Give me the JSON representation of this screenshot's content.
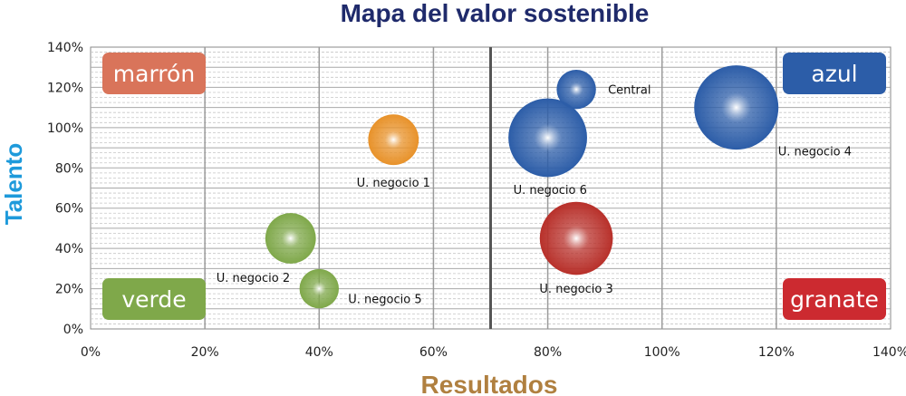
{
  "chart_data": {
    "type": "bubble",
    "title": "Mapa del valor sostenible",
    "xlabel": "Resultados",
    "ylabel": "Talento",
    "xlim": [
      0,
      140
    ],
    "ylim": [
      0,
      140
    ],
    "x_ticks": [
      "0%",
      "20%",
      "40%",
      "60%",
      "80%",
      "100%",
      "120%",
      "140%"
    ],
    "y_ticks": [
      "0%",
      "20%",
      "40%",
      "60%",
      "80%",
      "100%",
      "120%",
      "140%"
    ],
    "x_divider": 70,
    "grid": true,
    "bubbles": [
      {
        "label": "U. negocio 1",
        "x": 53,
        "y": 94,
        "size": 9,
        "color": "#E8922A"
      },
      {
        "label": "U. negocio 2",
        "x": 35,
        "y": 45,
        "size": 9,
        "color": "#7FA84A"
      },
      {
        "label": "U. negocio 3",
        "x": 85,
        "y": 45,
        "size": 13,
        "color": "#B8302A"
      },
      {
        "label": "U. negocio 4",
        "x": 113,
        "y": 110,
        "size": 15,
        "color": "#2C5DA8"
      },
      {
        "label": "U. negocio 5",
        "x": 40,
        "y": 20,
        "size": 7,
        "color": "#7FA84A"
      },
      {
        "label": "U. negocio 6",
        "x": 80,
        "y": 95,
        "size": 14,
        "color": "#2C5DA8"
      },
      {
        "label": "Central",
        "x": 85,
        "y": 119,
        "size": 7,
        "color": "#2C5DA8"
      }
    ],
    "quadrants": [
      {
        "label": "marrón",
        "position": "top-left",
        "color": "#D9745A"
      },
      {
        "label": "azul",
        "position": "top-right",
        "color": "#2C5DA8"
      },
      {
        "label": "verde",
        "position": "bottom-left",
        "color": "#7FA84A"
      },
      {
        "label": "granate",
        "position": "bottom-right",
        "color": "#CC2A30"
      }
    ],
    "colors": {
      "title": "#1F2A6B",
      "ylabel": "#1E9ADB",
      "xlabel": "#B08040"
    }
  }
}
